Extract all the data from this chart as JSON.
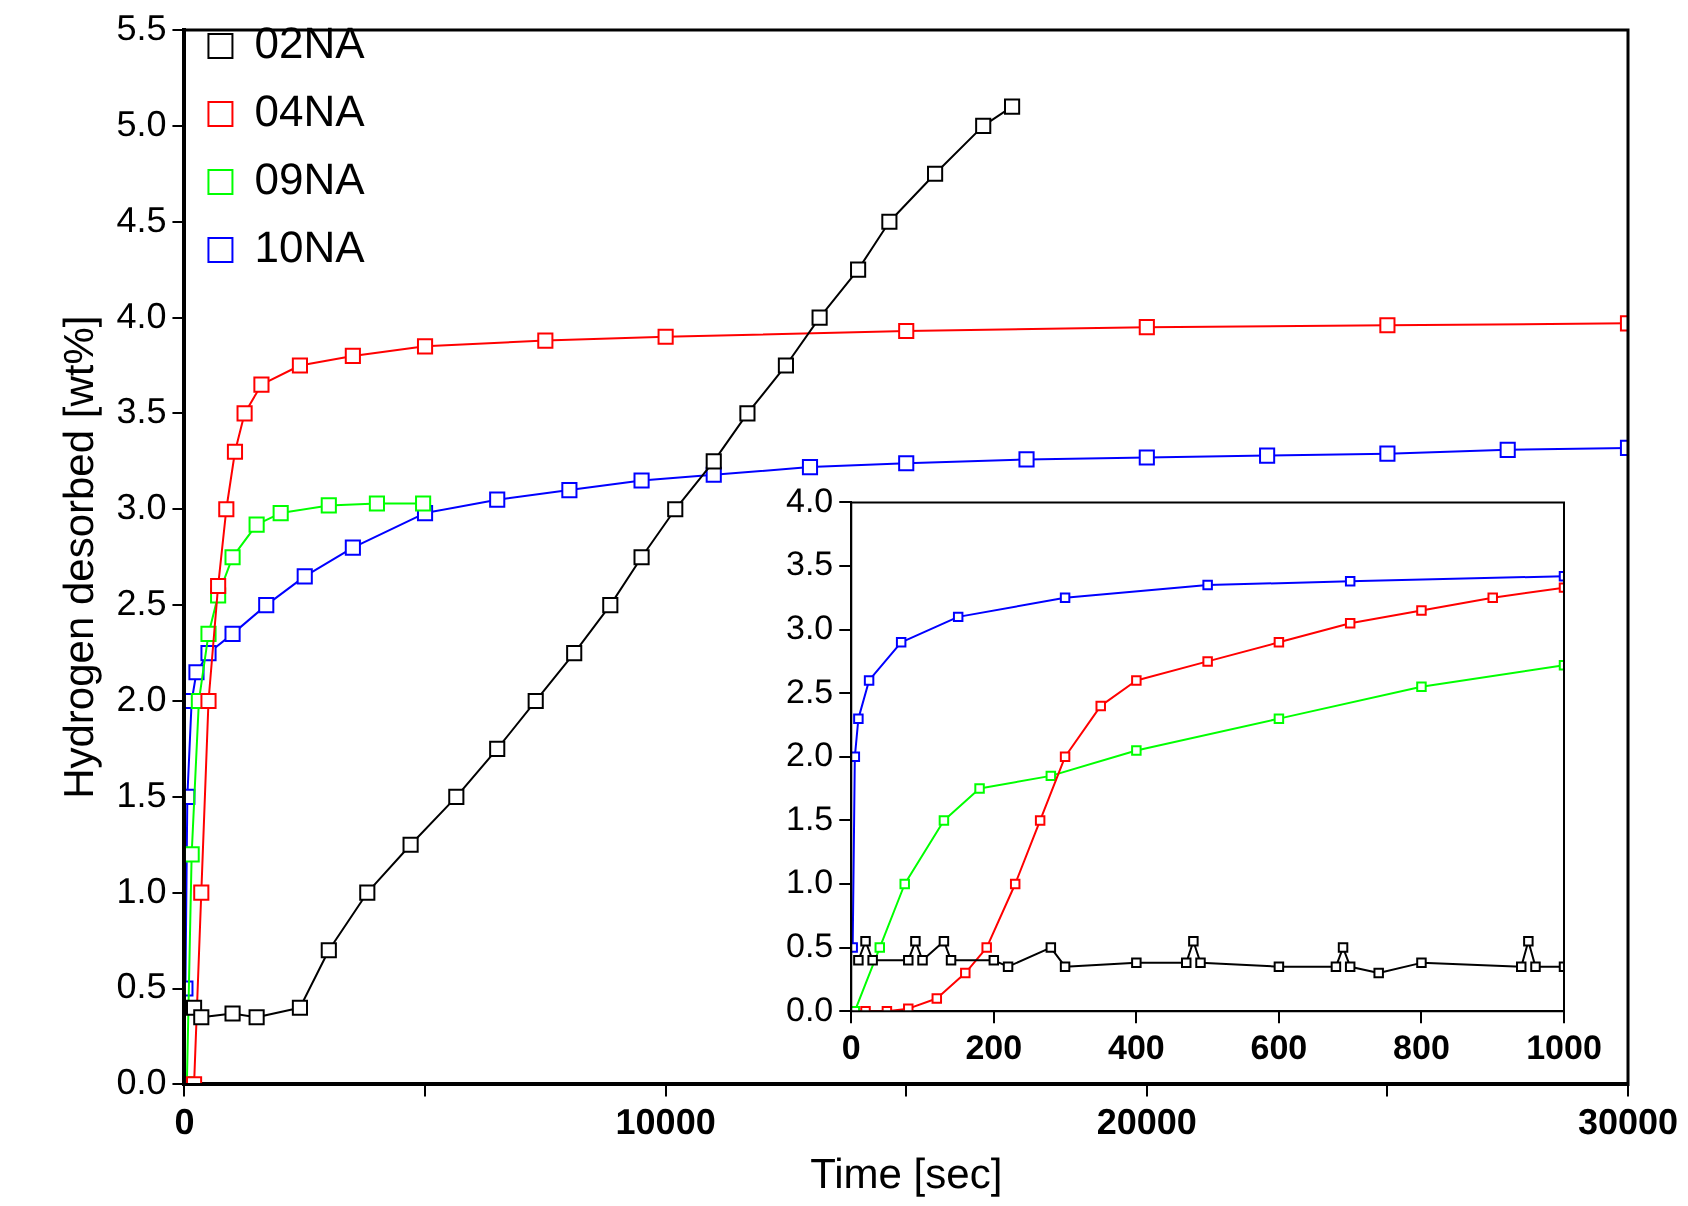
{
  "chart_data": [
    {
      "type": "line",
      "xlabel": "Time [sec]",
      "ylabel": "Hydrogen desorbed [wt%]",
      "legend": "top left",
      "marker": "square",
      "xlim": [
        0,
        30000
      ],
      "xticks": [
        0,
        {
          "value": 5000,
          "label": null
        },
        10000,
        {
          "value": 15000,
          "label": null
        },
        20000,
        {
          "value": 25000,
          "label": null
        },
        30000
      ],
      "ylim": [
        0,
        5.5
      ],
      "yticks": [
        {
          "value": 0,
          "label": "0.0"
        },
        0.5,
        {
          "value": 1,
          "label": "1.0"
        },
        1.5,
        {
          "value": 2,
          "label": "2.0"
        },
        2.5,
        {
          "value": 3,
          "label": "3.0"
        },
        3.5,
        {
          "value": 4,
          "label": "4.0"
        },
        4.5,
        {
          "value": 5,
          "label": "5.0"
        },
        5.5
      ],
      "series": [
        {
          "name": "02NA",
          "color": "#000000",
          "x": [
            200,
            350,
            1000,
            1500,
            2400,
            3000,
            3800,
            4700,
            5650,
            6500,
            7300,
            8100,
            8850,
            9500,
            10200,
            11000,
            11700,
            12500,
            13200,
            14000,
            14650,
            15600,
            16600,
            17200
          ],
          "values": [
            0.4,
            0.35,
            0.37,
            0.35,
            0.4,
            0.7,
            1.0,
            1.25,
            1.5,
            1.75,
            2.0,
            2.25,
            2.5,
            2.75,
            3.0,
            3.25,
            3.5,
            3.75,
            4.0,
            4.25,
            4.5,
            4.75,
            5.0,
            5.1
          ]
        },
        {
          "name": "04NA",
          "color": "#ff0000",
          "x": [
            200,
            350,
            500,
            700,
            870,
            1050,
            1250,
            1600,
            2400,
            3500,
            5000,
            7500,
            10000,
            15000,
            20000,
            25000,
            30000
          ],
          "values": [
            0,
            1.0,
            2.0,
            2.6,
            3.0,
            3.3,
            3.5,
            3.65,
            3.75,
            3.8,
            3.85,
            3.88,
            3.9,
            3.93,
            3.95,
            3.96,
            3.97
          ]
        },
        {
          "name": "09NA",
          "color": "#00ff00",
          "x": [
            50,
            150,
            300,
            500,
            700,
            1000,
            1500,
            2000,
            3000,
            4000,
            4960
          ],
          "values": [
            0,
            1.2,
            2.0,
            2.35,
            2.55,
            2.75,
            2.92,
            2.98,
            3.02,
            3.03,
            3.03
          ]
        },
        {
          "name": "10NA",
          "color": "#0000ff",
          "x": [
            20,
            60,
            150,
            250,
            500,
            1000,
            1700,
            2500,
            3500,
            5000,
            6500,
            8000,
            9500,
            11000,
            13000,
            15000,
            17500,
            20000,
            22500,
            25000,
            27500,
            30000
          ],
          "values": [
            0.5,
            1.5,
            2.0,
            2.15,
            2.25,
            2.35,
            2.5,
            2.65,
            2.8,
            2.98,
            3.05,
            3.1,
            3.15,
            3.18,
            3.22,
            3.24,
            3.26,
            3.27,
            3.28,
            3.29,
            3.31,
            3.32
          ]
        }
      ]
    },
    {
      "type": "line",
      "marker": "square",
      "xlim": [
        0,
        1000
      ],
      "xticks": [
        0,
        200,
        400,
        600,
        800,
        1000
      ],
      "ylim": [
        0,
        4
      ],
      "yticks": [
        {
          "value": 0,
          "label": "0.0"
        },
        0.5,
        {
          "value": 1,
          "label": "1.0"
        },
        1.5,
        {
          "value": 2,
          "label": "2.0"
        },
        2.5,
        {
          "value": 3,
          "label": "3.0"
        },
        3.5,
        {
          "value": 4,
          "label": "4.0"
        }
      ],
      "series": [
        {
          "color": "#000000",
          "x": [
            10,
            20,
            30,
            80,
            90,
            100,
            130,
            140,
            200,
            220,
            280,
            300,
            400,
            470,
            480,
            490,
            600,
            680,
            690,
            700,
            740,
            800,
            940,
            950,
            960,
            1000
          ],
          "values": [
            0.4,
            0.55,
            0.4,
            0.4,
            0.55,
            0.4,
            0.55,
            0.4,
            0.4,
            0.35,
            0.5,
            0.35,
            0.38,
            0.38,
            0.55,
            0.38,
            0.35,
            0.35,
            0.5,
            0.35,
            0.3,
            0.38,
            0.35,
            0.55,
            0.35,
            0.35
          ]
        },
        {
          "color": "#ff0000",
          "x": [
            20,
            50,
            80,
            120,
            160,
            190,
            230,
            265,
            300,
            350,
            400,
            500,
            600,
            700,
            800,
            900,
            1000
          ],
          "values": [
            0,
            0,
            0.02,
            0.1,
            0.3,
            0.5,
            1.0,
            1.5,
            2.0,
            2.4,
            2.6,
            2.75,
            2.9,
            3.05,
            3.15,
            3.25,
            3.33
          ]
        },
        {
          "color": "#00ff00",
          "x": [
            5,
            40,
            75,
            130,
            180,
            280,
            400,
            600,
            800,
            1000
          ],
          "values": [
            0,
            0.5,
            1.0,
            1.5,
            1.75,
            1.85,
            2.05,
            2.3,
            2.55,
            2.72
          ]
        },
        {
          "color": "#0000ff",
          "x": [
            2,
            5,
            10,
            25,
            70,
            150,
            300,
            500,
            700,
            1000
          ],
          "values": [
            0.5,
            2.0,
            2.3,
            2.6,
            2.9,
            3.1,
            3.25,
            3.35,
            3.38,
            3.42
          ]
        }
      ]
    }
  ]
}
